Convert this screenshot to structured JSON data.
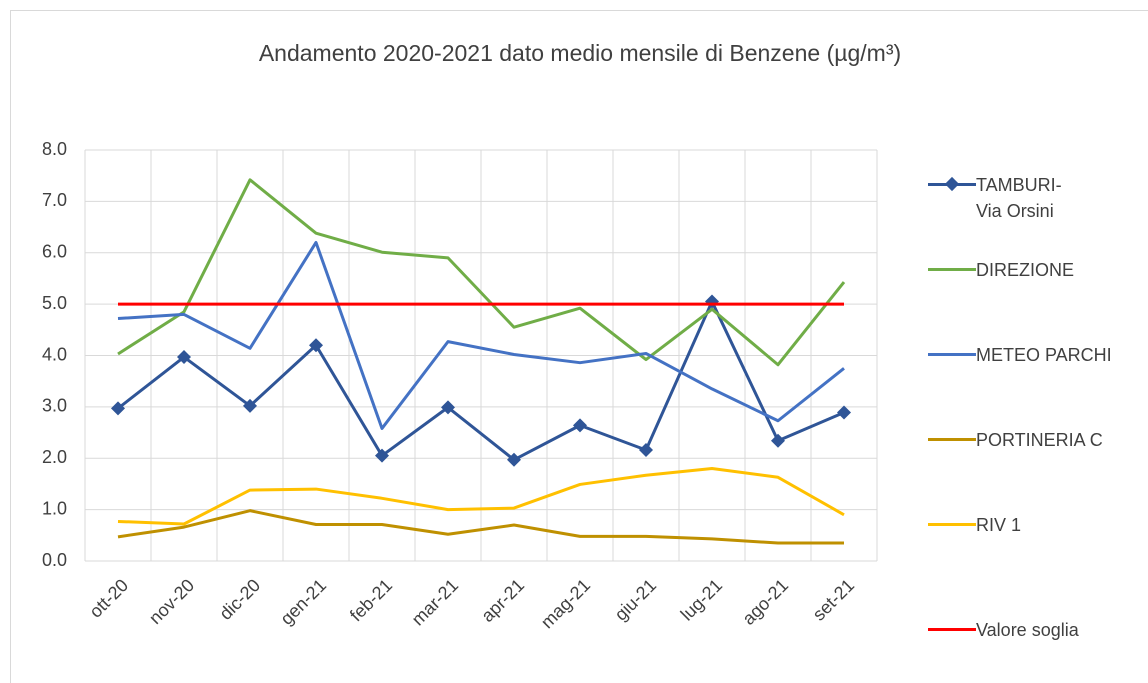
{
  "chart_data": {
    "type": "line",
    "title": "Andamento 2020-2021 dato medio mensile di Benzene (µg/m³)",
    "categories": [
      "ott-20",
      "nov-20",
      "dic-20",
      "gen-21",
      "feb-21",
      "mar-21",
      "apr-21",
      "mag-21",
      "giu-21",
      "lug-21",
      "ago-21",
      "set-21"
    ],
    "series": [
      {
        "name": "TAMBURI- Via Orsini",
        "color": "#2f5597",
        "marker": "diamond",
        "values": [
          2.97,
          3.97,
          3.02,
          4.2,
          2.05,
          2.99,
          1.97,
          2.64,
          2.16,
          5.05,
          2.34,
          2.89
        ]
      },
      {
        "name": "DIREZIONE",
        "color": "#70ad47",
        "values": [
          4.03,
          4.85,
          7.42,
          6.38,
          6.01,
          5.9,
          4.55,
          4.92,
          3.92,
          4.9,
          3.82,
          5.43
        ]
      },
      {
        "name": "METEO PARCHI",
        "color": "#4472c4",
        "values": [
          4.72,
          4.8,
          4.14,
          6.2,
          2.58,
          4.27,
          4.02,
          3.86,
          4.04,
          3.35,
          2.73,
          3.75
        ]
      },
      {
        "name": "PORTINERIA C",
        "color": "#bf9000",
        "values": [
          0.47,
          0.66,
          0.98,
          0.71,
          0.71,
          0.52,
          0.7,
          0.48,
          0.48,
          0.43,
          0.35,
          0.35
        ]
      },
      {
        "name": "RIV 1",
        "color": "#ffc000",
        "values": [
          0.77,
          0.72,
          1.38,
          1.4,
          1.22,
          1.0,
          1.03,
          1.49,
          1.67,
          1.8,
          1.63,
          0.9
        ]
      },
      {
        "name": "Valore soglia",
        "color": "#ff0000",
        "values": [
          5,
          5,
          5,
          5,
          5,
          5,
          5,
          5,
          5,
          5,
          5,
          5
        ]
      }
    ],
    "ylim": [
      0,
      8
    ],
    "yticks": [
      {
        "value": 0,
        "label": "0.0"
      },
      {
        "value": 1,
        "label": "1.0"
      },
      {
        "value": 2,
        "label": "2.0"
      },
      {
        "value": 3,
        "label": "3.0"
      },
      {
        "value": 4,
        "label": "4.0"
      },
      {
        "value": 5,
        "label": "5.0"
      },
      {
        "value": 6,
        "label": "6.0"
      },
      {
        "value": 7,
        "label": "7.0"
      },
      {
        "value": 8,
        "label": "8.0"
      }
    ],
    "grid": true,
    "legend": "right"
  }
}
